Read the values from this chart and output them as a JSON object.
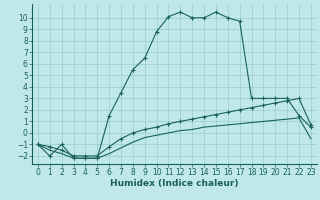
{
  "title": "",
  "xlabel": "Humidex (Indice chaleur)",
  "ylabel": "",
  "background_color": "#c0e8e8",
  "grid_color": "#98cccc",
  "line_color": "#1a6060",
  "x_main": [
    0,
    1,
    2,
    3,
    4,
    5,
    6,
    7,
    8,
    9,
    10,
    11,
    12,
    13,
    14,
    15,
    16,
    17,
    18,
    19,
    20,
    21,
    22,
    23
  ],
  "y_main": [
    -1,
    -2,
    -1,
    -2.2,
    -2.2,
    -2.2,
    1.5,
    3.5,
    5.5,
    6.5,
    8.8,
    10.1,
    10.5,
    10.0,
    10.0,
    10.5,
    10.0,
    9.7,
    3.0,
    3.0,
    3.0,
    3.0,
    1.5,
    0.5
  ],
  "x_upper": [
    0,
    1,
    2,
    3,
    4,
    5,
    6,
    7,
    8,
    9,
    10,
    11,
    12,
    13,
    14,
    15,
    16,
    17,
    18,
    19,
    20,
    21,
    22,
    23
  ],
  "y_upper": [
    -1.0,
    -1.2,
    -1.5,
    -2.0,
    -2.0,
    -2.0,
    -1.2,
    -0.5,
    0.0,
    0.3,
    0.5,
    0.8,
    1.0,
    1.2,
    1.4,
    1.6,
    1.8,
    2.0,
    2.2,
    2.4,
    2.6,
    2.8,
    3.0,
    0.7
  ],
  "x_lower": [
    0,
    1,
    2,
    3,
    4,
    5,
    6,
    7,
    8,
    9,
    10,
    11,
    12,
    13,
    14,
    15,
    16,
    17,
    18,
    19,
    20,
    21,
    22,
    23
  ],
  "y_lower": [
    -1.0,
    -1.5,
    -1.8,
    -2.2,
    -2.2,
    -2.2,
    -1.8,
    -1.3,
    -0.8,
    -0.4,
    -0.2,
    0.0,
    0.2,
    0.3,
    0.5,
    0.6,
    0.7,
    0.8,
    0.9,
    1.0,
    1.1,
    1.2,
    1.3,
    -0.5
  ],
  "xlim": [
    -0.5,
    23.5
  ],
  "ylim": [
    -2.7,
    11.2
  ],
  "yticks": [
    -2,
    -1,
    0,
    1,
    2,
    3,
    4,
    5,
    6,
    7,
    8,
    9,
    10
  ],
  "xticks": [
    0,
    1,
    2,
    3,
    4,
    5,
    6,
    7,
    8,
    9,
    10,
    11,
    12,
    13,
    14,
    15,
    16,
    17,
    18,
    19,
    20,
    21,
    22,
    23
  ],
  "markersize": 3,
  "linewidth": 0.8,
  "tick_fontsize": 5.5,
  "xlabel_fontsize": 6.5
}
